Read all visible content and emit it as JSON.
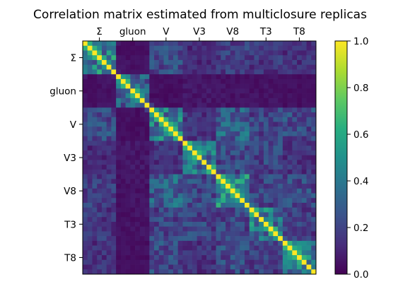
{
  "chart_data": {
    "type": "heatmap",
    "title": "Correlation matrix estimated from multiclosure replicas",
    "groups": [
      "Σ",
      "gluon",
      "V",
      "V3",
      "V8",
      "T3",
      "T8"
    ],
    "points_per_group": 7,
    "n": 49,
    "x_tick_position": "top",
    "y_tick_position": "left",
    "colormap": "viridis",
    "colorbar": {
      "min": 0.0,
      "max": 1.0,
      "ticks": [
        "0.0",
        "0.2",
        "0.4",
        "0.6",
        "0.8",
        "1.0"
      ],
      "placement": "right"
    },
    "values_note": "symmetric matrix, diagonal = 1.0; off-diagonal values approximate (0-0.6)",
    "block_levels": [
      [
        0.45,
        0.05,
        0.22,
        0.12,
        0.18,
        0.16,
        0.14
      ],
      [
        0.05,
        0.3,
        0.04,
        0.06,
        0.05,
        0.05,
        0.04
      ],
      [
        0.22,
        0.04,
        0.42,
        0.14,
        0.3,
        0.2,
        0.22
      ],
      [
        0.12,
        0.06,
        0.14,
        0.38,
        0.22,
        0.2,
        0.14
      ],
      [
        0.18,
        0.05,
        0.3,
        0.22,
        0.45,
        0.2,
        0.22
      ],
      [
        0.16,
        0.05,
        0.2,
        0.2,
        0.2,
        0.4,
        0.18
      ],
      [
        0.14,
        0.04,
        0.22,
        0.14,
        0.22,
        0.18,
        0.42
      ]
    ]
  }
}
